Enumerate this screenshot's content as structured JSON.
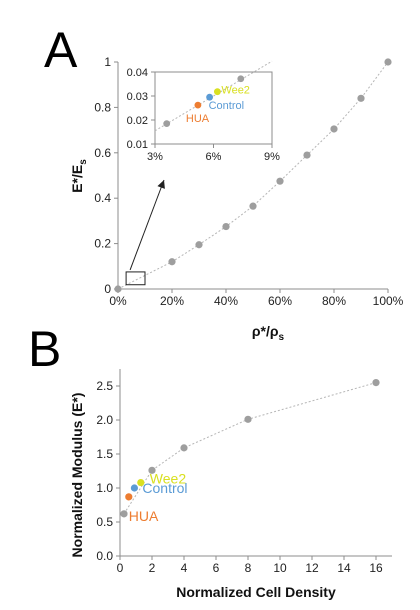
{
  "panels": [
    {
      "letter": "A",
      "chart_data": {
        "type": "scatter",
        "xlabel_main": "ρ*/ρ",
        "xlabel_sub": "s",
        "ylabel_main": "E*/E",
        "ylabel_sub": "s",
        "xlim": [
          0,
          1
        ],
        "ylim": [
          0,
          1
        ],
        "x_ticks": [
          0,
          0.2,
          0.4,
          0.6,
          0.8,
          1.0
        ],
        "x_tick_labels": [
          "0%",
          "20%",
          "40%",
          "60%",
          "80%",
          "100%"
        ],
        "y_ticks": [
          0,
          0.2,
          0.4,
          0.6,
          0.8,
          1.0
        ],
        "y_tick_labels": [
          "0",
          "0.2",
          "0.4",
          "0.6",
          "0.8",
          "1"
        ],
        "series": [
          {
            "x": [
              0,
              0.2,
              0.3,
              0.4,
              0.5,
              0.6,
              0.7,
              0.8,
              0.9,
              1.0
            ],
            "y": [
              0,
              0.12,
              0.195,
              0.275,
              0.365,
              0.475,
              0.59,
              0.705,
              0.84,
              1.0
            ],
            "color": "#9e9e9e"
          }
        ],
        "zoom_box": {
          "x_range": [
            0.03,
            0.1
          ],
          "y_range": [
            0.01,
            0.04
          ]
        },
        "inset": {
          "xlim": [
            0.03,
            0.09
          ],
          "ylim": [
            0.01,
            0.04
          ],
          "x_ticks": [
            0.03,
            0.06,
            0.09
          ],
          "x_tick_labels": [
            "3%",
            "6%",
            "9%"
          ],
          "y_ticks": [
            0.01,
            0.02,
            0.03,
            0.04
          ],
          "y_tick_labels": [
            "0.01",
            "0.02",
            "0.03",
            "0.04"
          ],
          "trend": {
            "x": [
              0.03,
              0.09
            ],
            "y": [
              0.0155,
              0.0445
            ]
          },
          "points": [
            {
              "x": 0.036,
              "y": 0.0185,
              "color": "#9e9e9e",
              "label": ""
            },
            {
              "x": 0.052,
              "y": 0.0262,
              "color": "#ed7d31",
              "label": "HUA"
            },
            {
              "x": 0.058,
              "y": 0.0295,
              "color": "#5b9bd5",
              "label": "Control"
            },
            {
              "x": 0.062,
              "y": 0.0318,
              "color": "#d9e021",
              "label": "Wee2"
            },
            {
              "x": 0.074,
              "y": 0.0372,
              "color": "#9e9e9e",
              "label": ""
            }
          ]
        }
      }
    },
    {
      "letter": "B",
      "chart_data": {
        "type": "scatter",
        "xlabel": "Normalized Cell Density",
        "ylabel": "Normalized Modulus (E*)",
        "xlim": [
          0,
          17
        ],
        "ylim": [
          0,
          2.75
        ],
        "x_ticks": [
          0,
          2,
          4,
          6,
          8,
          10,
          12,
          14,
          16
        ],
        "x_tick_labels": [
          "0",
          "2",
          "4",
          "6",
          "8",
          "10",
          "12",
          "14",
          "16"
        ],
        "y_ticks": [
          0,
          0.5,
          1.0,
          1.5,
          2.0,
          2.5
        ],
        "y_tick_labels": [
          "0.0",
          "0.5",
          "1.0",
          "1.5",
          "2.0",
          "2.5"
        ],
        "series": [
          {
            "x": [
              0.25,
              2,
              4,
              8,
              16
            ],
            "y": [
              0.62,
              1.26,
              1.59,
              2.01,
              2.55
            ],
            "color": "#9e9e9e"
          }
        ],
        "highlighted": [
          {
            "x": 0.55,
            "y": 0.87,
            "color": "#ed7d31",
            "label": "HUA"
          },
          {
            "x": 0.9,
            "y": 1.0,
            "color": "#5b9bd5",
            "label": "Control"
          },
          {
            "x": 1.3,
            "y": 1.08,
            "color": "#d9e021",
            "label": "Wee2"
          }
        ]
      }
    }
  ]
}
